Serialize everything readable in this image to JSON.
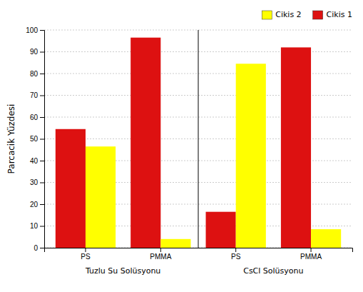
{
  "chart_data": {
    "type": "bar",
    "categories": [
      "PS",
      "PMMA",
      "PS",
      "PMMA"
    ],
    "series": [
      {
        "name": "Cikis 1",
        "color": "#DD1111",
        "values": [
          54.5,
          96.5,
          16.5,
          92.0
        ]
      },
      {
        "name": "Cikis 2",
        "color": "#FFFF00",
        "values": [
          46.5,
          4.0,
          84.5,
          8.5
        ]
      }
    ],
    "ylabel": "Parcacik Yüzdesi",
    "annotations": [
      "Tuzlu Su Solüsyonu",
      "CsCl Solüsyonu"
    ],
    "ylim": [
      0,
      100
    ],
    "yticks": [
      0,
      10,
      20,
      30,
      40,
      50,
      60,
      70,
      80,
      90,
      100
    ],
    "grid": true,
    "legend": "upper right"
  }
}
